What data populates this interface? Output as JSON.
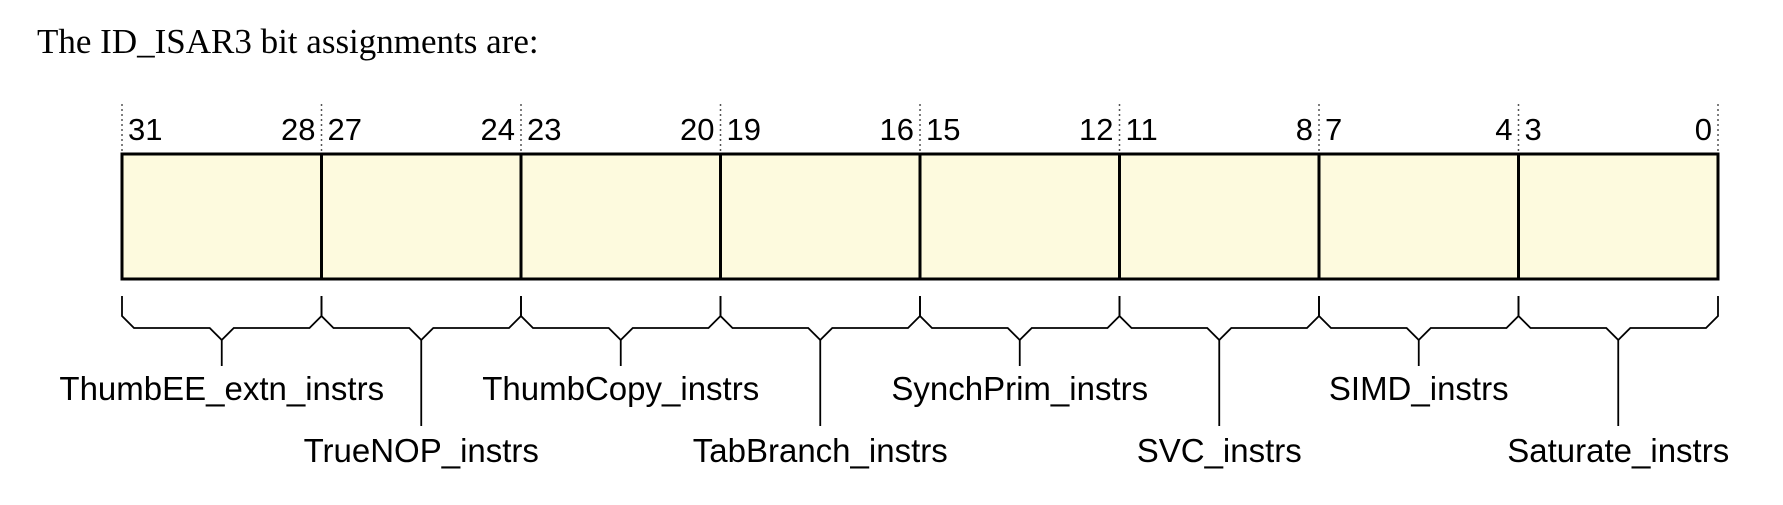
{
  "intro": "The ID_ISAR3 bit assignments are:",
  "register": "ID_ISAR3",
  "fields": [
    {
      "name": "ThumbEE_extn_instrs",
      "hi": "31",
      "lo": "28",
      "label_row": 1
    },
    {
      "name": "TrueNOP_instrs",
      "hi": "27",
      "lo": "24",
      "label_row": 2
    },
    {
      "name": "ThumbCopy_instrs",
      "hi": "23",
      "lo": "20",
      "label_row": 1
    },
    {
      "name": "TabBranch_instrs",
      "hi": "19",
      "lo": "16",
      "label_row": 2
    },
    {
      "name": "SynchPrim_instrs",
      "hi": "15",
      "lo": "12",
      "label_row": 1
    },
    {
      "name": "SVC_instrs",
      "hi": "11",
      "lo": "8",
      "label_row": 2
    },
    {
      "name": "SIMD_instrs",
      "hi": "7",
      "lo": "4",
      "label_row": 1
    },
    {
      "name": "Saturate_instrs",
      "hi": "3",
      "lo": "0",
      "label_row": 2
    }
  ],
  "colors": {
    "cell_fill": "#fdfade",
    "stroke": "#000000"
  }
}
